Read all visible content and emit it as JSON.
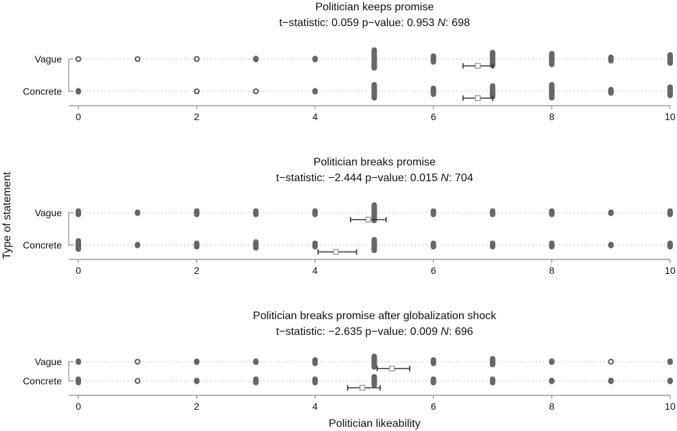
{
  "chart_data": {
    "type": "scatter",
    "ylabel": "Type of statement",
    "xlabel": "Politician likeability",
    "xlim": [
      0,
      10
    ],
    "xticks": [
      "0",
      "2",
      "4",
      "6",
      "8",
      "10"
    ],
    "colors": {
      "dots": "#666666",
      "mean_marker": "#999999",
      "ci": "#333333",
      "grid": "#bbbbbb"
    },
    "panels": [
      {
        "title": "Politician keeps promise",
        "stat_t_label": "t−statistic:",
        "stat_t_value": "0.059",
        "stat_p_label": "p−value:",
        "stat_p_value": "0.953",
        "stat_n_label": "N",
        "stat_n_value": ": 698",
        "categories": [
          "Vague",
          "Concrete"
        ],
        "series": [
          {
            "name": "Vague",
            "dots": [
              {
                "x": 0,
                "n": 1
              },
              {
                "x": 1,
                "n": 1
              },
              {
                "x": 2,
                "n": 1
              },
              {
                "x": 3,
                "n": 2
              },
              {
                "x": 4,
                "n": 2
              },
              {
                "x": 5,
                "n": 9
              },
              {
                "x": 6,
                "n": 4
              },
              {
                "x": 7,
                "n": 7
              },
              {
                "x": 8,
                "n": 6
              },
              {
                "x": 9,
                "n": 3
              },
              {
                "x": 10,
                "n": 5
              }
            ],
            "mean": 6.75,
            "ci": [
              6.5,
              7.0
            ]
          },
          {
            "name": "Concrete",
            "dots": [
              {
                "x": 0,
                "n": 2
              },
              {
                "x": 2,
                "n": 1
              },
              {
                "x": 3,
                "n": 1
              },
              {
                "x": 4,
                "n": 2
              },
              {
                "x": 5,
                "n": 7
              },
              {
                "x": 6,
                "n": 4
              },
              {
                "x": 7,
                "n": 6
              },
              {
                "x": 8,
                "n": 7
              },
              {
                "x": 9,
                "n": 3
              },
              {
                "x": 10,
                "n": 5
              }
            ],
            "mean": 6.75,
            "ci": [
              6.5,
              7.0
            ]
          }
        ]
      },
      {
        "title": "Politician breaks promise",
        "stat_t_label": "t−statistic:",
        "stat_t_value": "−2.444",
        "stat_p_label": "p−value:",
        "stat_p_value": "0.015",
        "stat_n_label": "N",
        "stat_n_value": ": 704",
        "categories": [
          "Vague",
          "Concrete"
        ],
        "series": [
          {
            "name": "Vague",
            "dots": [
              {
                "x": 0,
                "n": 3
              },
              {
                "x": 1,
                "n": 2
              },
              {
                "x": 2,
                "n": 3
              },
              {
                "x": 3,
                "n": 3
              },
              {
                "x": 4,
                "n": 3
              },
              {
                "x": 5,
                "n": 8
              },
              {
                "x": 6,
                "n": 3
              },
              {
                "x": 7,
                "n": 3
              },
              {
                "x": 8,
                "n": 3
              },
              {
                "x": 9,
                "n": 2
              },
              {
                "x": 10,
                "n": 3
              }
            ],
            "mean": 4.9,
            "ci": [
              4.6,
              5.2
            ]
          },
          {
            "name": "Concrete",
            "dots": [
              {
                "x": 0,
                "n": 5
              },
              {
                "x": 1,
                "n": 2
              },
              {
                "x": 2,
                "n": 3
              },
              {
                "x": 3,
                "n": 4
              },
              {
                "x": 4,
                "n": 3
              },
              {
                "x": 5,
                "n": 6
              },
              {
                "x": 6,
                "n": 3
              },
              {
                "x": 7,
                "n": 3
              },
              {
                "x": 8,
                "n": 3
              },
              {
                "x": 9,
                "n": 2
              },
              {
                "x": 10,
                "n": 3
              }
            ],
            "mean": 4.35,
            "ci": [
              4.05,
              4.7
            ]
          }
        ]
      },
      {
        "title": "Politician breaks promise after globalization shock",
        "stat_t_label": "t−statistic:",
        "stat_t_value": "−2.635",
        "stat_p_label": "p−value:",
        "stat_p_value": "0.009",
        "stat_n_label": "N",
        "stat_n_value": ": 696",
        "categories": [
          "Vague",
          "Concrete"
        ],
        "series": [
          {
            "name": "Vague",
            "dots": [
              {
                "x": 0,
                "n": 2
              },
              {
                "x": 1,
                "n": 1
              },
              {
                "x": 2,
                "n": 2
              },
              {
                "x": 3,
                "n": 2
              },
              {
                "x": 4,
                "n": 3
              },
              {
                "x": 5,
                "n": 6
              },
              {
                "x": 6,
                "n": 3
              },
              {
                "x": 7,
                "n": 4
              },
              {
                "x": 8,
                "n": 2
              },
              {
                "x": 9,
                "n": 1
              },
              {
                "x": 10,
                "n": 2
              }
            ],
            "mean": 5.3,
            "ci": [
              5.05,
              5.6
            ]
          },
          {
            "name": "Concrete",
            "dots": [
              {
                "x": 0,
                "n": 3
              },
              {
                "x": 1,
                "n": 1
              },
              {
                "x": 2,
                "n": 2
              },
              {
                "x": 3,
                "n": 3
              },
              {
                "x": 4,
                "n": 3
              },
              {
                "x": 5,
                "n": 5
              },
              {
                "x": 6,
                "n": 3
              },
              {
                "x": 7,
                "n": 3
              },
              {
                "x": 8,
                "n": 2
              },
              {
                "x": 9,
                "n": 2
              },
              {
                "x": 10,
                "n": 2
              }
            ],
            "mean": 4.8,
            "ci": [
              4.55,
              5.1
            ]
          }
        ]
      }
    ]
  }
}
